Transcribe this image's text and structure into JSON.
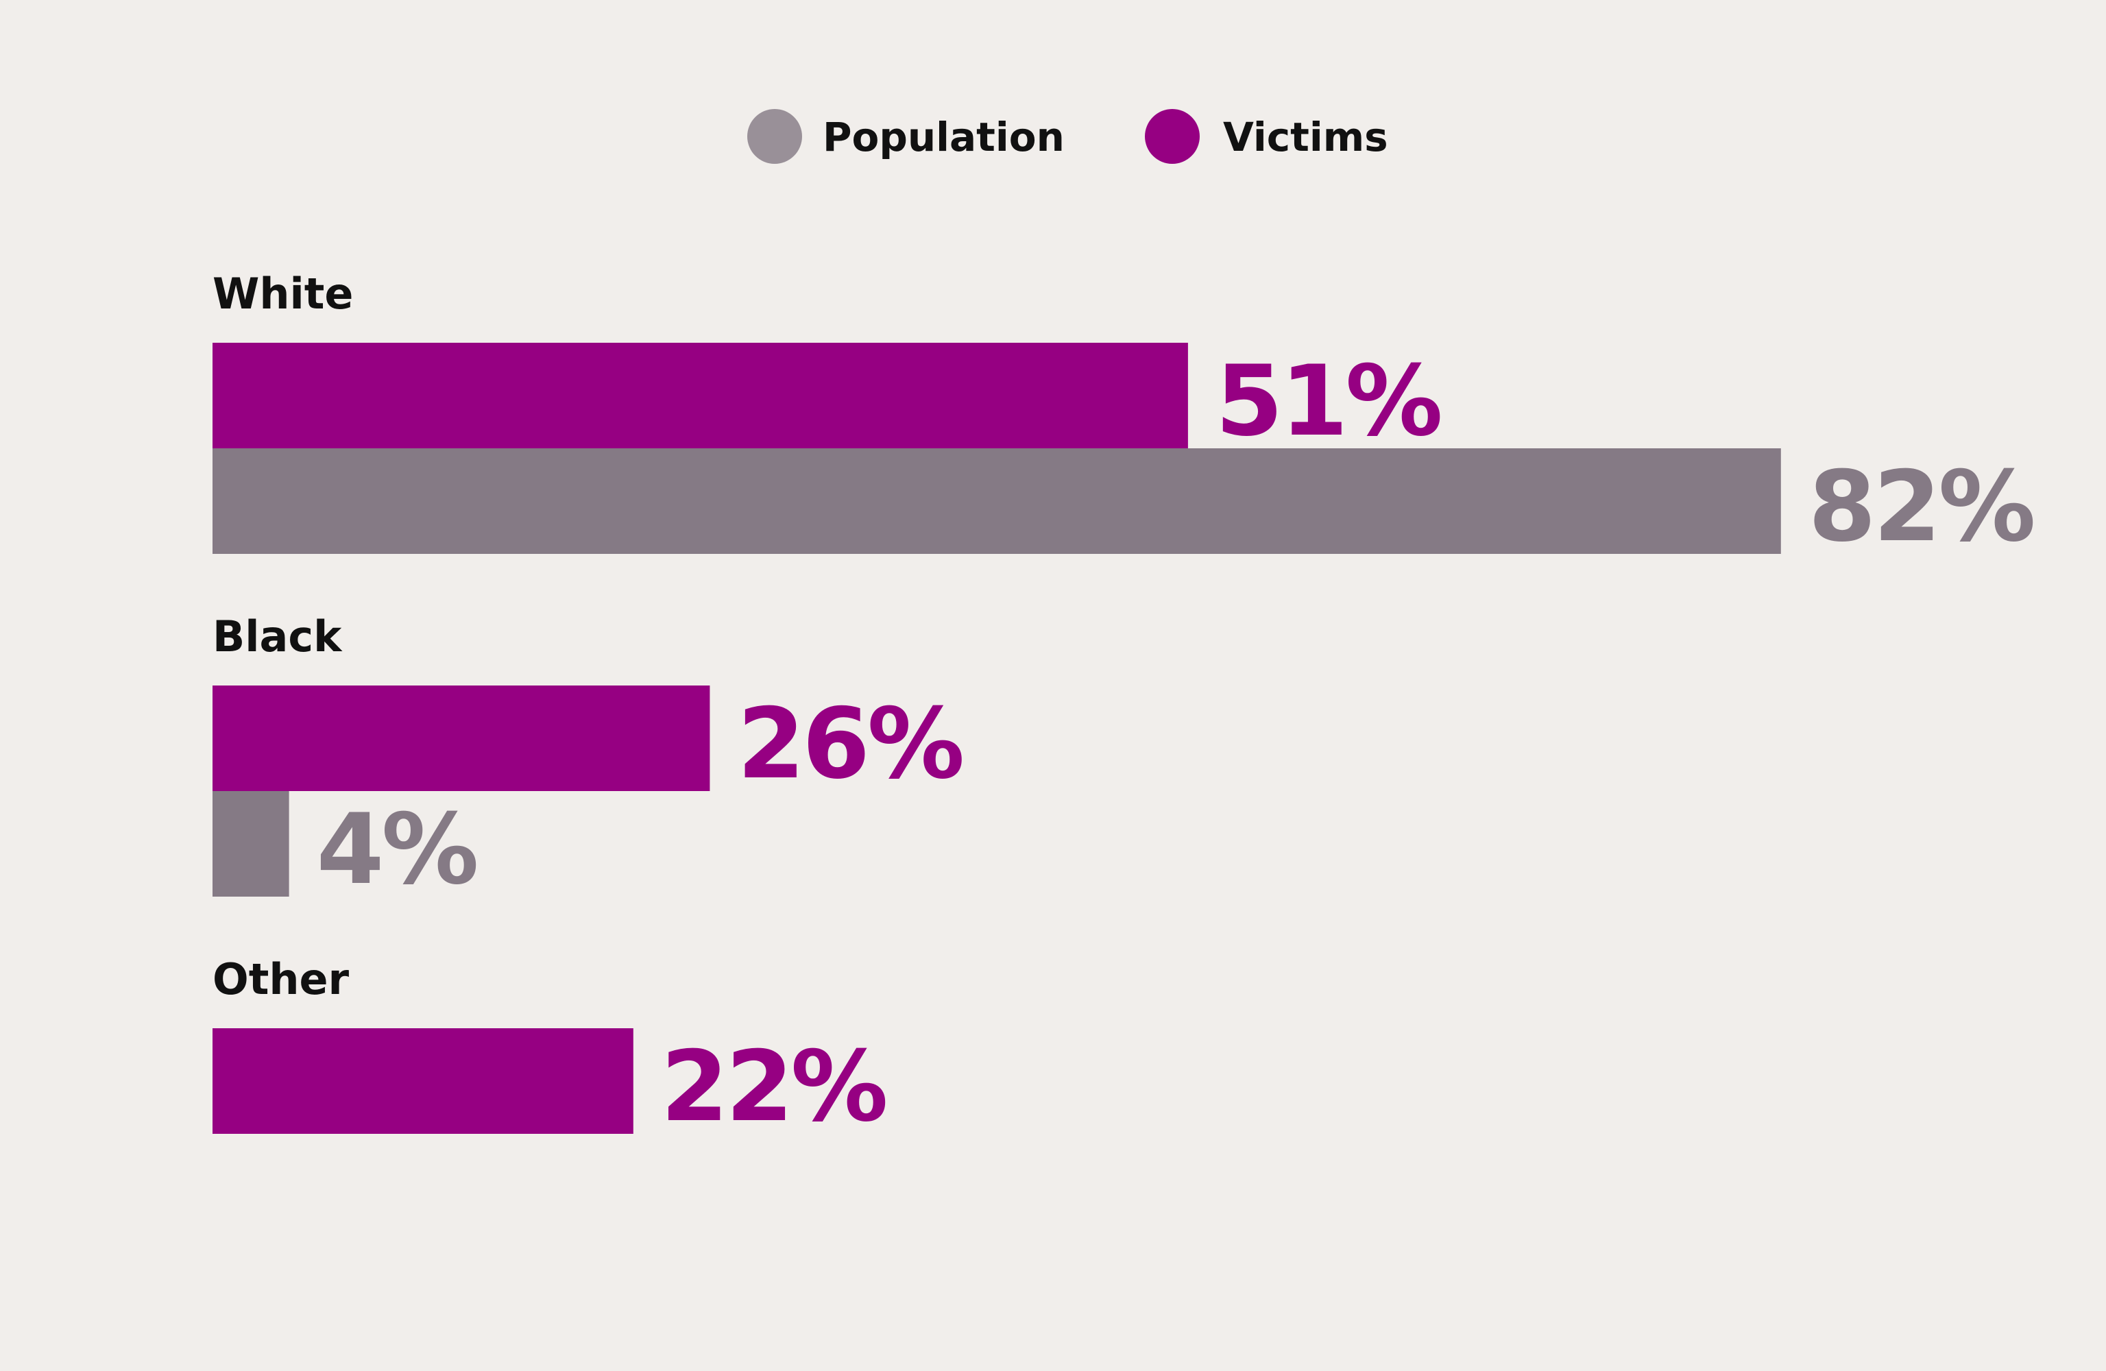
{
  "chart_data": {
    "type": "bar",
    "orientation": "horizontal",
    "categories": [
      "White",
      "Black",
      "Other"
    ],
    "series": [
      {
        "name": "Victims",
        "color": "#960082",
        "values": [
          51,
          26,
          22
        ]
      },
      {
        "name": "Population",
        "color": "#857a85",
        "values": [
          82,
          4,
          null
        ]
      }
    ],
    "value_labels": {
      "Victims": [
        "51%",
        "26%",
        "22%"
      ],
      "Population": [
        "82%",
        "4%",
        ""
      ]
    },
    "legend": {
      "placement": "top-center",
      "items": [
        {
          "name": "Population",
          "color": "#999098"
        },
        {
          "name": "Victims",
          "color": "#960082"
        }
      ]
    },
    "unit": "%",
    "xlim": [
      0,
      100
    ],
    "grid": false
  }
}
